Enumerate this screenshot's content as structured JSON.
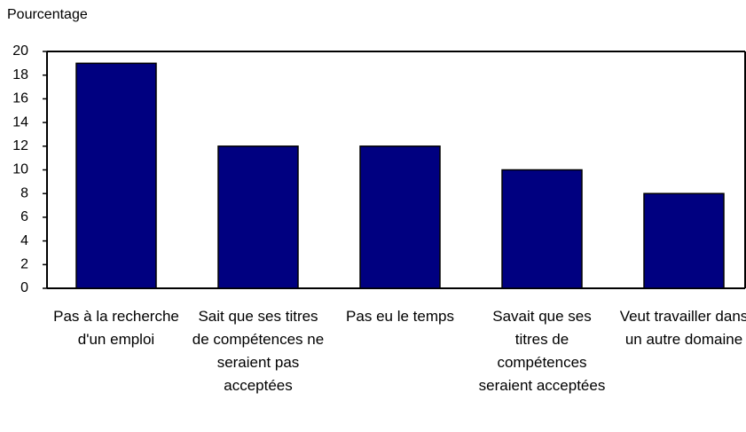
{
  "chart_data": {
    "type": "bar",
    "y_axis_label": "Pourcentage",
    "categories": [
      "Pas à la recherche d'un emploi",
      "Sait que ses titres de compétences ne seraient pas acceptées",
      "Pas eu le temps",
      "Savait que ses titres de compétences seraient acceptées",
      "Veut travailler dans un autre domaine"
    ],
    "values": [
      19,
      12,
      12,
      10,
      8
    ],
    "color": "#000080",
    "ylim": [
      0,
      20
    ],
    "yticks": [
      0,
      2,
      4,
      6,
      8,
      10,
      12,
      14,
      16,
      18,
      20
    ],
    "grid": false
  }
}
